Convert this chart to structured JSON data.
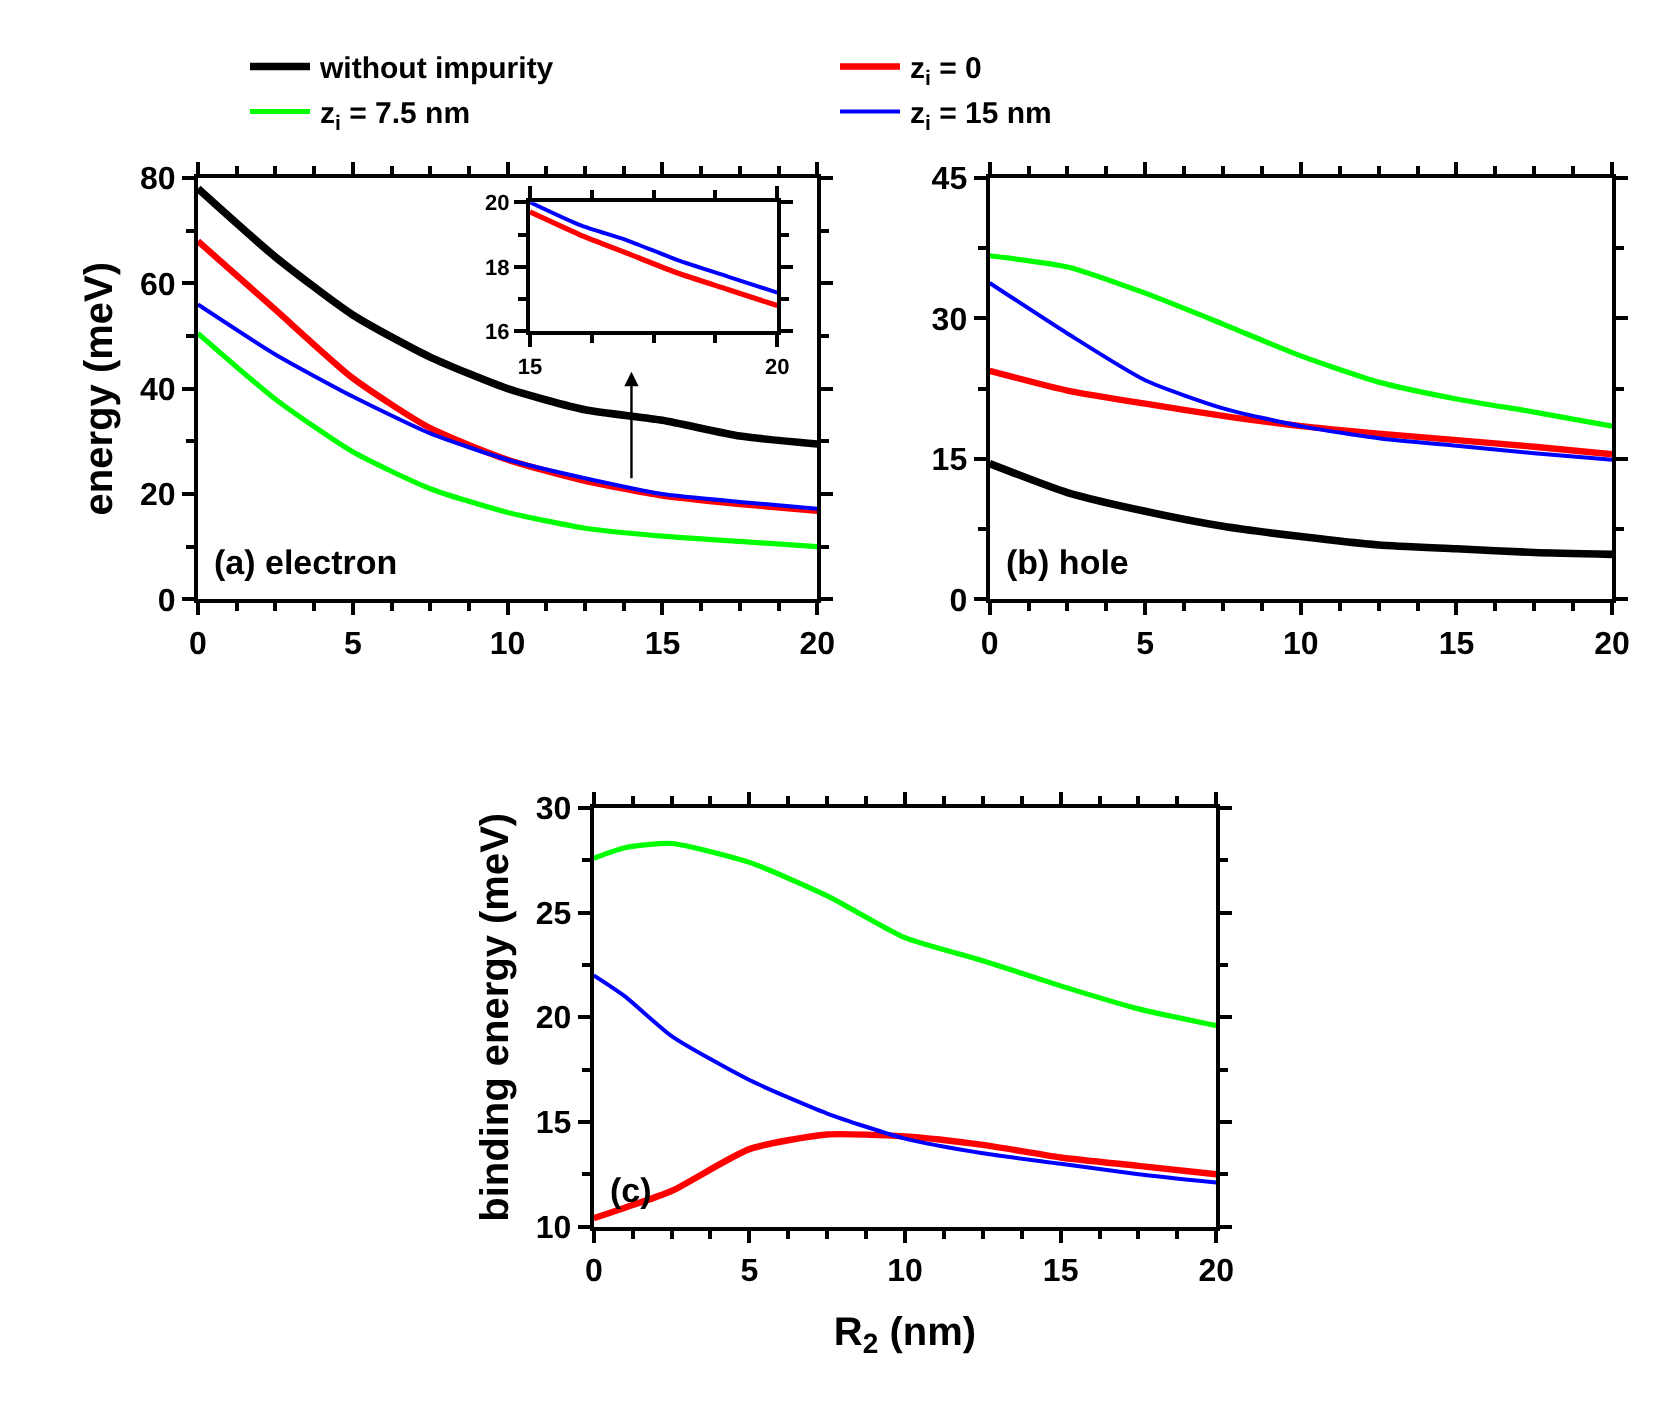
{
  "chart_data": [
    {
      "type": "line",
      "ylabel": "energy (meV)",
      "annotations": [
        "(a) electron"
      ],
      "legend": "top",
      "x": [
        0,
        2.5,
        5,
        7.5,
        10,
        12.5,
        15,
        17.5,
        20
      ],
      "xlim": [
        0,
        20
      ],
      "xticks": [
        0,
        5,
        10,
        15,
        20
      ],
      "ylim": [
        0,
        80
      ],
      "yticks": [
        0,
        20,
        40,
        60,
        80
      ],
      "series": [
        {
          "name": "without impurity",
          "color": "#000000",
          "values": [
            78,
            65,
            54,
            46,
            40,
            36,
            34,
            31,
            29.5
          ]
        },
        {
          "name": "z$_{i}$ = 0",
          "color": "#ff0000",
          "values": [
            68,
            55,
            42,
            32.5,
            26.5,
            22.5,
            19.7,
            18.1,
            16.8
          ]
        },
        {
          "name": "z$_{i}$ = 7.5 nm",
          "color": "#00ff00",
          "values": [
            50.5,
            38,
            28,
            21,
            16.5,
            13.5,
            12,
            11,
            10
          ]
        },
        {
          "name": "z$_{i}$ = 15 nm",
          "color": "#0000ff",
          "values": [
            56,
            46.5,
            38.5,
            31.5,
            26.5,
            23,
            20,
            18.5,
            17.2
          ]
        }
      ]
    },
    {
      "type": "line",
      "x": [
        15,
        16,
        17,
        18,
        19,
        20
      ],
      "xlim": [
        15,
        20
      ],
      "xticks": [
        15,
        20
      ],
      "ylim": [
        16,
        20
      ],
      "yticks": [
        16,
        18,
        20
      ],
      "series": [
        {
          "color": "#ff0000",
          "values": [
            19.7,
            19.0,
            18.4,
            17.8,
            17.3,
            16.8
          ]
        },
        {
          "color": "#0000ff",
          "values": [
            20,
            19.3,
            18.8,
            18.2,
            17.7,
            17.2
          ]
        }
      ]
    },
    {
      "type": "line",
      "annotations": [
        "(b) hole"
      ],
      "x": [
        0,
        2.5,
        5,
        7.5,
        10,
        12.5,
        15,
        17.5,
        20
      ],
      "xlim": [
        0,
        20
      ],
      "xticks": [
        0,
        5,
        10,
        15,
        20
      ],
      "ylim": [
        0,
        45
      ],
      "yticks": [
        0,
        15,
        30,
        45
      ],
      "series": [
        {
          "color": "#000000",
          "values": [
            14.5,
            11.4,
            9.4,
            7.8,
            6.7,
            5.8,
            5.4,
            5.0,
            4.8
          ]
        },
        {
          "color": "#ff0000",
          "values": [
            24.4,
            22.3,
            20.9,
            19.6,
            18.5,
            17.7,
            17.0,
            16.3,
            15.5
          ]
        },
        {
          "color": "#00ff00",
          "values": [
            36.7,
            35.5,
            32.7,
            29.4,
            26,
            23.2,
            21.4,
            20,
            18.5
          ]
        },
        {
          "color": "#0000ff",
          "values": [
            33.8,
            28.4,
            23.4,
            20.4,
            18.5,
            17.2,
            16.4,
            15.6,
            14.9
          ]
        }
      ]
    },
    {
      "type": "line",
      "xlabel": "R$_{2}$ (nm)",
      "ylabel": "binding energy (meV)",
      "annotations": [
        "(c)"
      ],
      "x": [
        0,
        1,
        2.5,
        5,
        7.5,
        10,
        12.5,
        15,
        17.5,
        20
      ],
      "xlim": [
        0,
        20
      ],
      "xticks": [
        0,
        5,
        10,
        15,
        20
      ],
      "ylim": [
        10,
        30
      ],
      "yticks": [
        10,
        15,
        20,
        25,
        30
      ],
      "series": [
        {
          "color": "#ff0000",
          "values": [
            10.4,
            10.9,
            11.7,
            13.7,
            14.4,
            14.3,
            13.9,
            13.3,
            12.9,
            12.5
          ]
        },
        {
          "color": "#00ff00",
          "values": [
            27.6,
            28.1,
            28.3,
            27.4,
            25.8,
            23.8,
            22.7,
            21.5,
            20.4,
            19.6
          ]
        },
        {
          "color": "#0000ff",
          "values": [
            22.0,
            21.0,
            19.1,
            17.0,
            15.4,
            14.2,
            13.5,
            13.0,
            12.5,
            12.1
          ]
        }
      ]
    }
  ]
}
